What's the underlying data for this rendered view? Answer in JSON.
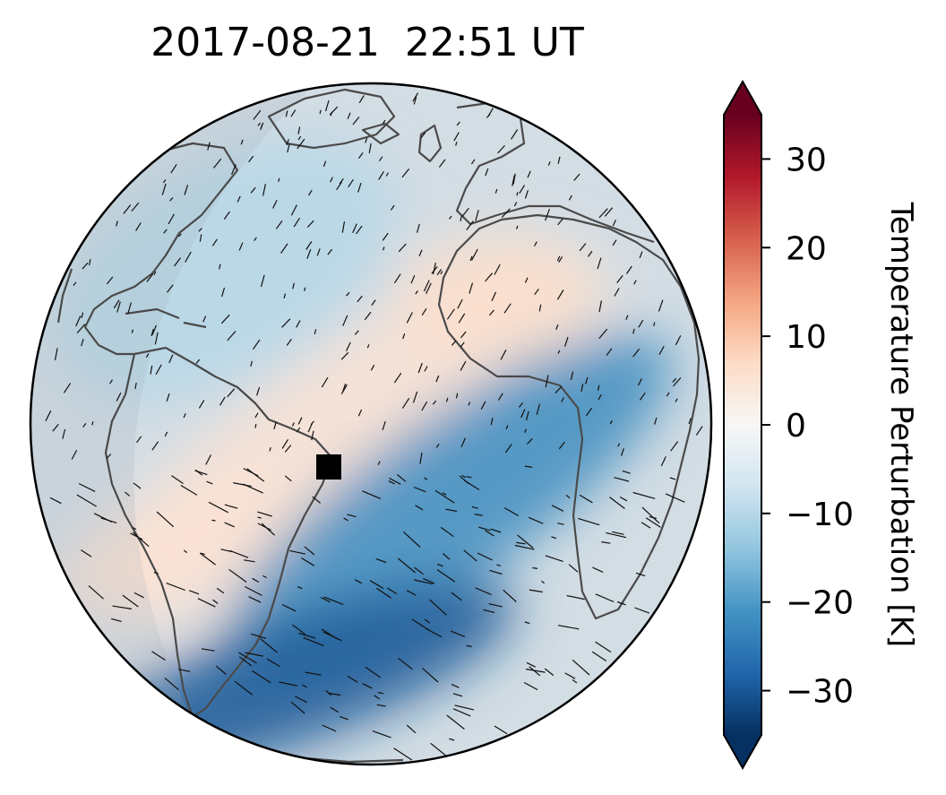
{
  "chart_data": {
    "type": "heatmap",
    "title": "2017-08-21  22:51 UT",
    "projection": "orthographic",
    "grid": false,
    "features": [
      "coastlines",
      "wind vectors",
      "marker"
    ],
    "colorbar": {
      "label": "Temperature Perturbation [K]",
      "ticks": [
        30,
        20,
        10,
        0,
        -10,
        -20,
        -30
      ],
      "tick_labels": [
        "30",
        "20",
        "10",
        "0",
        "−10",
        "−20",
        "−30"
      ],
      "range": [
        -35,
        35
      ],
      "extend": "both",
      "colormap": "RdBu_r",
      "colors": [
        "#053061",
        "#2166ac",
        "#4393c3",
        "#92c5de",
        "#d1e5f0",
        "#f7f7f7",
        "#fddbc7",
        "#f4a582",
        "#d6604d",
        "#b2182b",
        "#67001f"
      ]
    },
    "marker": {
      "shape": "square",
      "color": "#000000"
    },
    "perturbation_bands": [
      {
        "region": "north Atlantic",
        "value": -10
      },
      {
        "region": "equatorial Atlantic / Brazil",
        "value": 5
      },
      {
        "region": "south Atlantic",
        "value": -22
      },
      {
        "region": "southern South America",
        "value": -30
      },
      {
        "region": "west Africa",
        "value": 6
      }
    ]
  }
}
